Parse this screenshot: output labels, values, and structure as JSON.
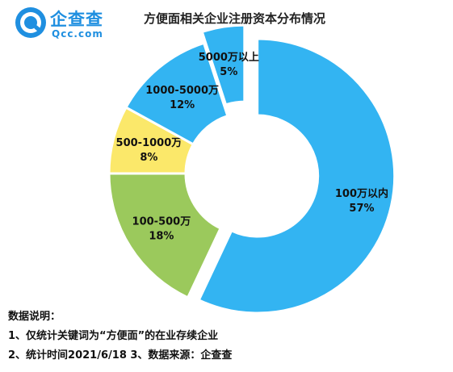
{
  "logo": {
    "name_cn": "企查查",
    "name_en": "Qcc.com"
  },
  "chart_data": {
    "type": "pie",
    "title": "方便面相关企业注册资本分布情况",
    "categories": [
      "100万以内",
      "100-500万",
      "500-1000万",
      "1000-5000万",
      "5000万以上"
    ],
    "values": [
      57,
      18,
      8,
      12,
      5
    ],
    "value_labels": [
      "57%",
      "18%",
      "8%",
      "12%",
      "5%"
    ],
    "colors": [
      "#33b4f2",
      "#9bc95c",
      "#fbe86a",
      "#33b4f2",
      "#33b4f2"
    ],
    "exploded": [
      true,
      false,
      false,
      false,
      true
    ],
    "donut": true,
    "legend": "none"
  },
  "notes": {
    "heading": "数据说明：",
    "line1": "1、仅统计关键词为“方便面”的在业存续企业",
    "line2": "2、统计时间2021/6/18    3、数据来源：企查查"
  }
}
